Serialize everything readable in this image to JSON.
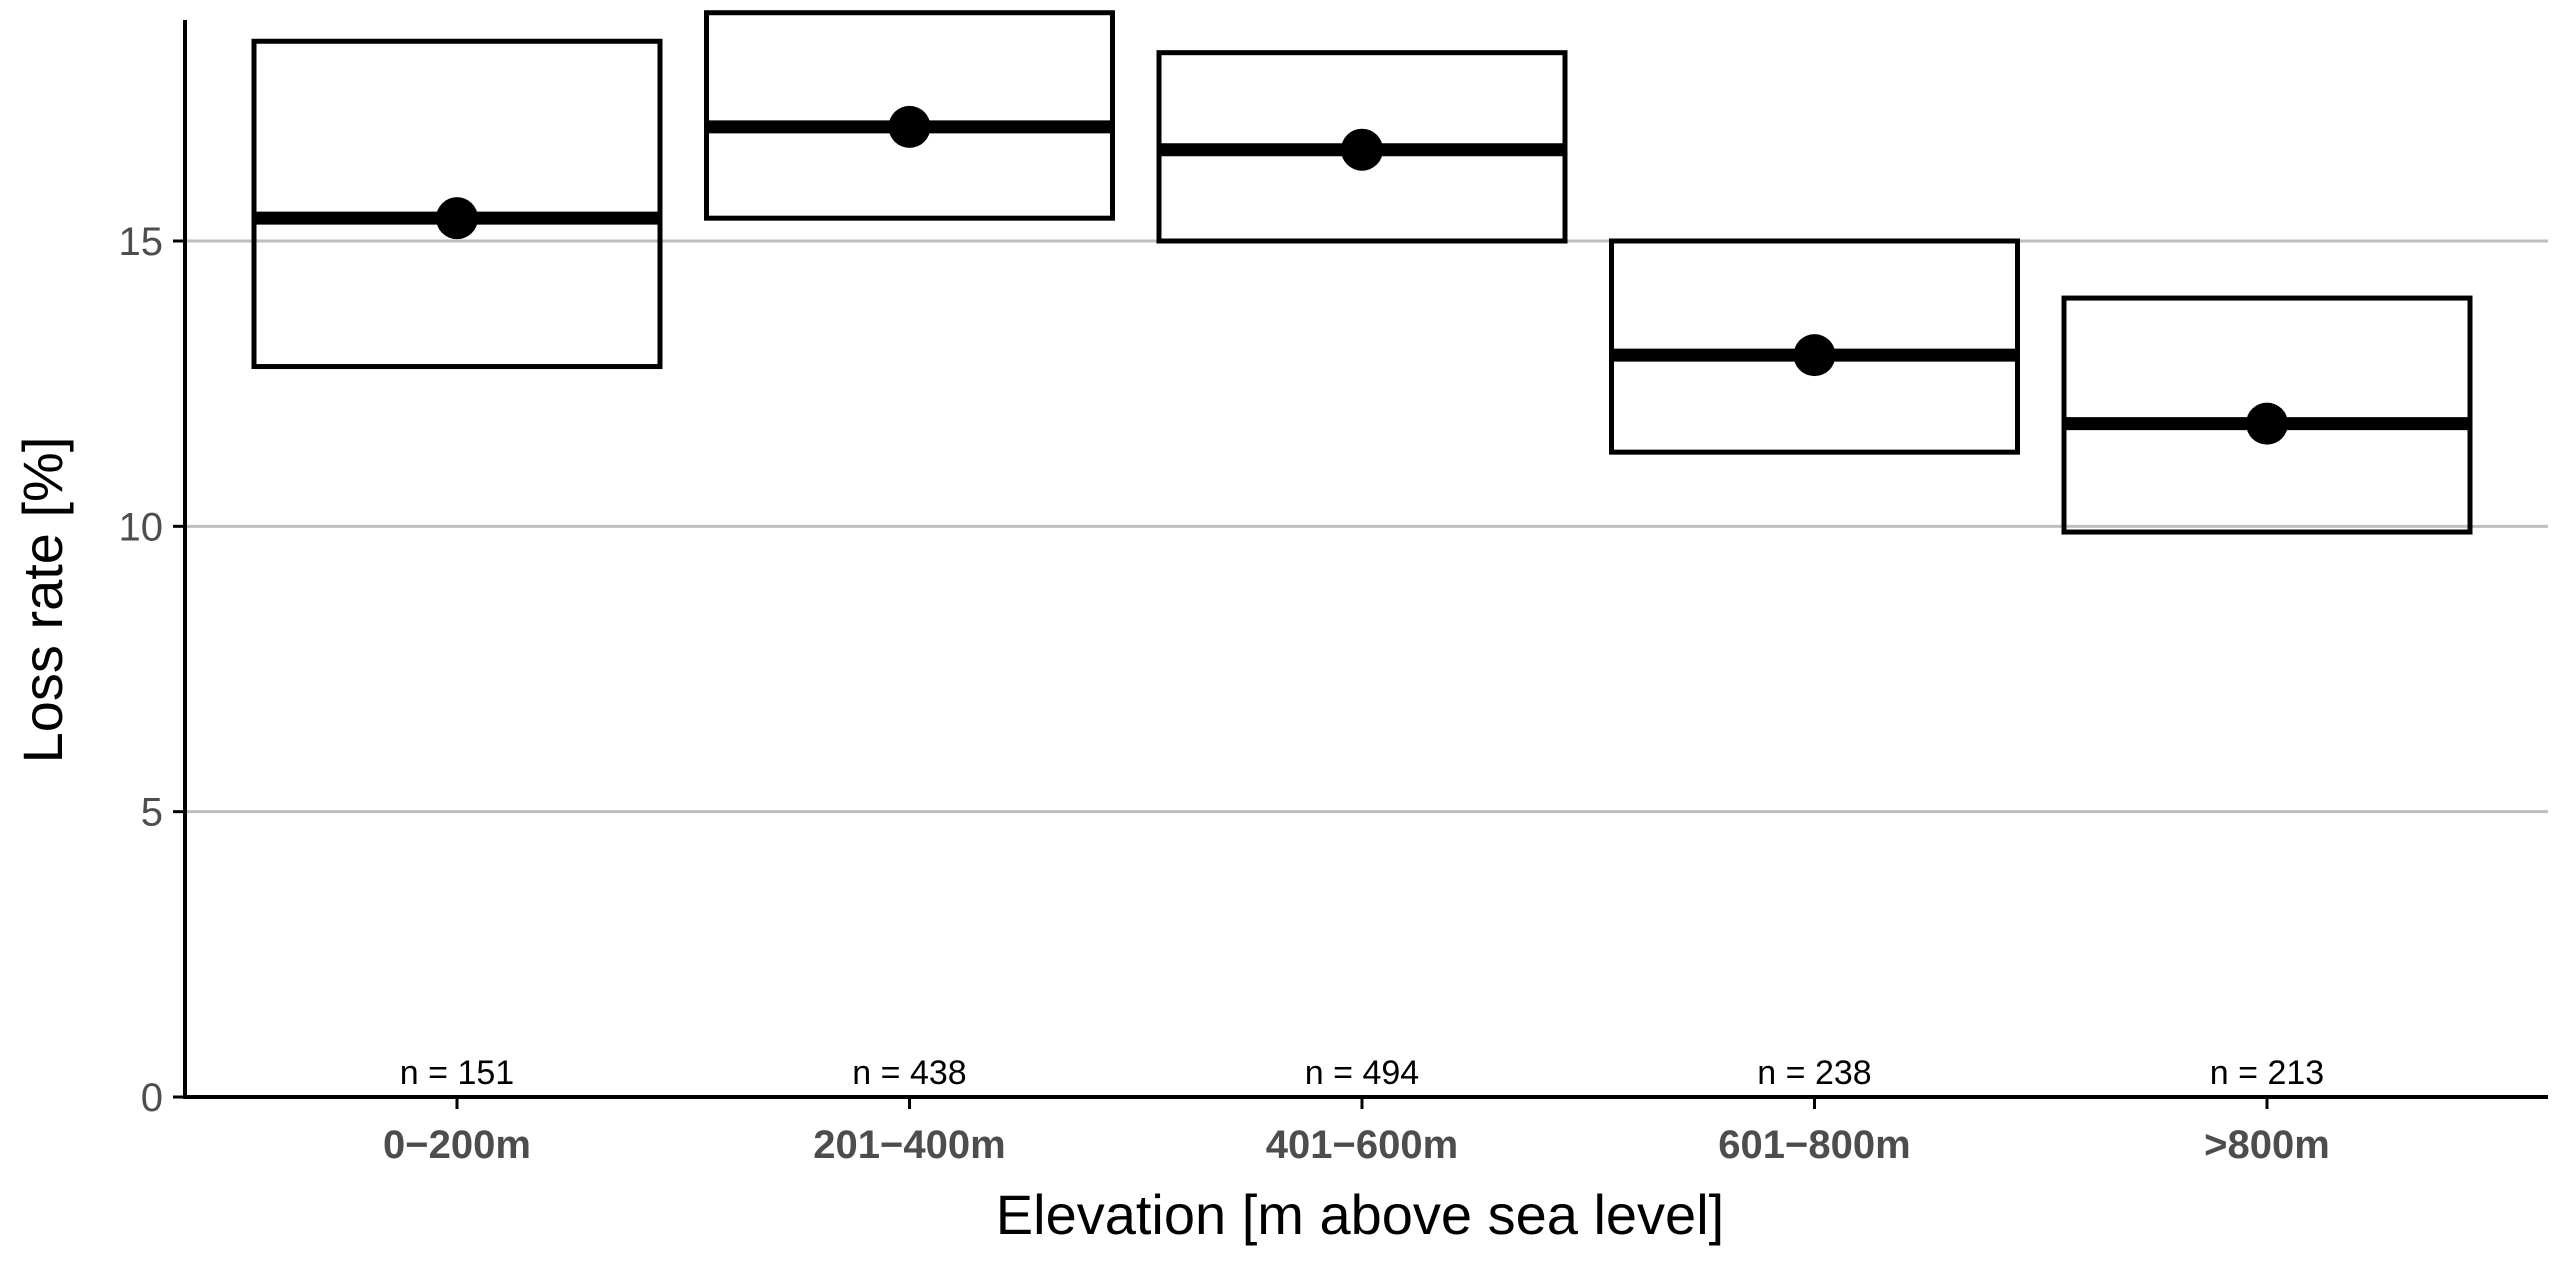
{
  "chart_data": {
    "type": "crossbar",
    "title": "",
    "xlabel": "Elevation [m above sea level]",
    "ylabel": "Loss rate [%]",
    "ylim": [
      0,
      19
    ],
    "yticks": [
      0,
      5,
      10,
      15
    ],
    "ytick_labels": [
      "0",
      "5",
      "10",
      "15"
    ],
    "grid": "horizontal major gridlines",
    "legend": "none",
    "categories": [
      "0−200m",
      "201−400m",
      "401−600m",
      "601−800m",
      ">800m"
    ],
    "mean": [
      15.4,
      17.0,
      16.6,
      13.0,
      11.8
    ],
    "lower": [
      12.8,
      15.4,
      15.0,
      11.3,
      9.9
    ],
    "upper": [
      18.5,
      19.0,
      18.3,
      15.0,
      14.0
    ],
    "n_labels": [
      "n =  151",
      "n =  438",
      "n =  494",
      "n =  238",
      "n =  213"
    ]
  },
  "colors": {
    "background": "#ffffff",
    "grid": "#bebebe",
    "marks": "#000000",
    "tick_text": "#4d4d4d"
  }
}
